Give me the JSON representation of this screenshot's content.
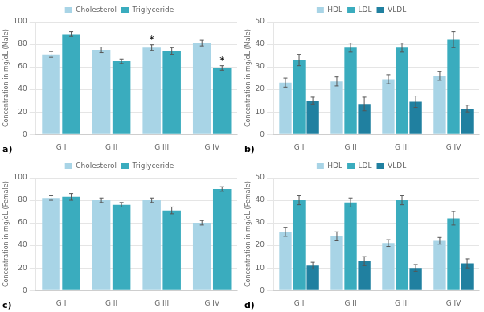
{
  "chart_data": [
    {
      "type": "bar",
      "ylabel": "Concentration in mg/dL (Male)",
      "categories": [
        "G I",
        "G II",
        "G III",
        "G IV"
      ],
      "series": [
        {
          "name": "Cholesterol",
          "color": "#a8d4e6",
          "values": [
            71,
            75,
            77,
            81
          ],
          "errors": [
            2.5,
            2.5,
            2.5,
            2.5
          ]
        },
        {
          "name": "Triglyceride",
          "color": "#3aacbe",
          "values": [
            89,
            65,
            74,
            59
          ],
          "errors": [
            2,
            2,
            3,
            2
          ]
        }
      ],
      "ylim": [
        0,
        100
      ],
      "yticks": [
        0,
        20,
        40,
        60,
        80,
        100
      ],
      "grid": true,
      "legend": "top",
      "annotations": [
        {
          "text": "*",
          "series": "Cholesterol",
          "category": "G III"
        },
        {
          "text": "*",
          "series": "Triglyceride",
          "category": "G IV"
        },
        {
          "text": "a)"
        }
      ]
    },
    {
      "type": "bar",
      "ylabel": "Concentration in mg/dL (Male)",
      "categories": [
        "G I",
        "G II",
        "G III",
        "G IV"
      ],
      "series": [
        {
          "name": "HDL",
          "color": "#a8d4e6",
          "values": [
            23,
            23.5,
            24.5,
            26
          ],
          "errors": [
            2,
            2,
            2,
            2
          ]
        },
        {
          "name": "LDL",
          "color": "#3aacbe",
          "values": [
            33,
            38.5,
            38.5,
            42
          ],
          "errors": [
            2.5,
            2,
            2,
            3.5
          ]
        },
        {
          "name": "VLDL",
          "color": "#2080a0",
          "values": [
            15,
            13.5,
            14.5,
            11.5
          ],
          "errors": [
            1.5,
            3,
            2.5,
            1.5
          ]
        }
      ],
      "ylim": [
        0,
        50
      ],
      "yticks": [
        0,
        10,
        20,
        30,
        40,
        50
      ],
      "grid": true,
      "legend": "top",
      "annotations": [
        {
          "text": "b)"
        }
      ]
    },
    {
      "type": "bar",
      "ylabel": "Concentration in mg/dL (Female)",
      "categories": [
        "G I",
        "G II",
        "G III",
        "G IV"
      ],
      "series": [
        {
          "name": "Cholesterol",
          "color": "#a8d4e6",
          "values": [
            82,
            80,
            80,
            60
          ],
          "errors": [
            2,
            2,
            2,
            2
          ]
        },
        {
          "name": "Triglyceride",
          "color": "#3aacbe",
          "values": [
            83,
            76,
            71,
            90
          ],
          "errors": [
            3,
            2,
            3,
            2
          ]
        }
      ],
      "ylim": [
        0,
        100
      ],
      "yticks": [
        0,
        20,
        40,
        60,
        80,
        100
      ],
      "grid": true,
      "legend": "top",
      "annotations": [
        {
          "text": "c)"
        }
      ]
    },
    {
      "type": "bar",
      "ylabel": "Concentration in mg/dL (Female)",
      "categories": [
        "G I",
        "G II",
        "G III",
        "G IV"
      ],
      "series": [
        {
          "name": "HDL",
          "color": "#a8d4e6",
          "values": [
            26,
            24,
            21,
            22
          ],
          "errors": [
            2,
            2,
            1.5,
            1.5
          ]
        },
        {
          "name": "LDL",
          "color": "#3aacbe",
          "values": [
            40,
            39,
            40,
            32
          ],
          "errors": [
            2,
            2,
            2,
            3
          ]
        },
        {
          "name": "VLDL",
          "color": "#2080a0",
          "values": [
            11,
            13,
            10,
            12
          ],
          "errors": [
            1.5,
            2,
            1.5,
            2
          ]
        }
      ],
      "ylim": [
        0,
        50
      ],
      "yticks": [
        0,
        10,
        20,
        30,
        40,
        50
      ],
      "grid": true,
      "legend": "top",
      "annotations": [
        {
          "text": "d)"
        }
      ]
    }
  ]
}
